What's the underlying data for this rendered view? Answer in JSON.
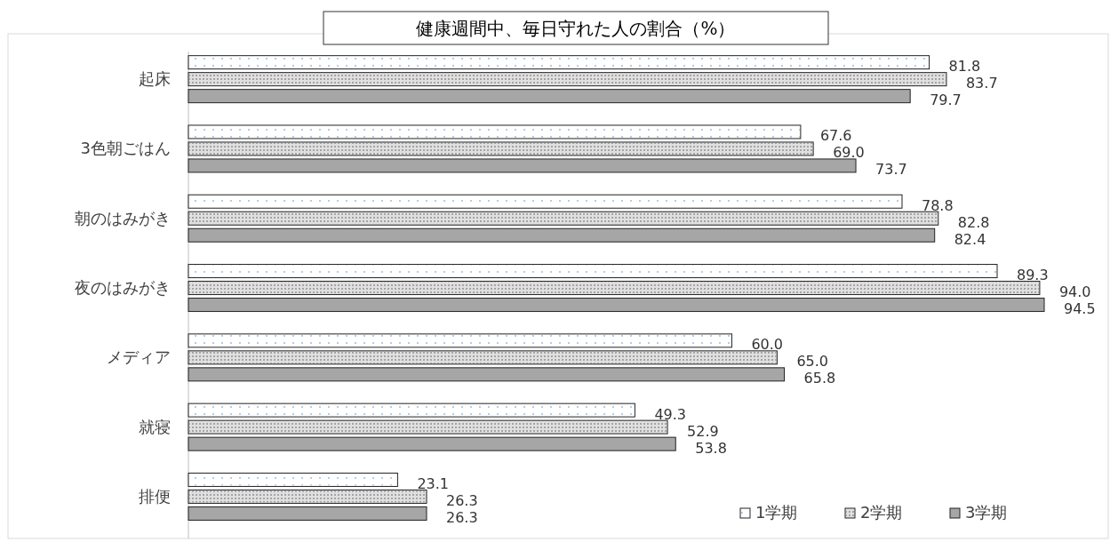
{
  "chart_data": {
    "type": "bar",
    "orientation": "horizontal",
    "title": "健康週間中、毎日守れた人の割合（%）",
    "categories": [
      "起床",
      "3色朝ごはん",
      "朝のはみがき",
      "夜のはみがき",
      "メディア",
      "就寝",
      "排便"
    ],
    "series": [
      {
        "name": "1学期",
        "color": "#ffffff",
        "values": [
          81.8,
          67.6,
          78.8,
          89.3,
          60.0,
          49.3,
          23.1
        ],
        "value_labels": [
          "81.8",
          "67.6",
          "78.8",
          "89.3",
          "60.0",
          "49.3",
          "23.1"
        ]
      },
      {
        "name": "2学期",
        "color": "#e0e0e0",
        "values": [
          83.7,
          69.0,
          82.8,
          94.0,
          65.0,
          52.9,
          26.3
        ],
        "value_labels": [
          "83.7",
          "69.0",
          "82.8",
          "94.0",
          "65.0",
          "52.9",
          "26.3"
        ]
      },
      {
        "name": "3学期",
        "color": "#a6a6a6",
        "values": [
          79.7,
          73.7,
          82.4,
          94.5,
          65.8,
          53.8,
          26.3
        ],
        "value_labels": [
          "79.7",
          "73.7",
          "82.4",
          "94.5",
          "65.8",
          "53.8",
          "26.3"
        ]
      }
    ],
    "legend": "bottom right"
  }
}
